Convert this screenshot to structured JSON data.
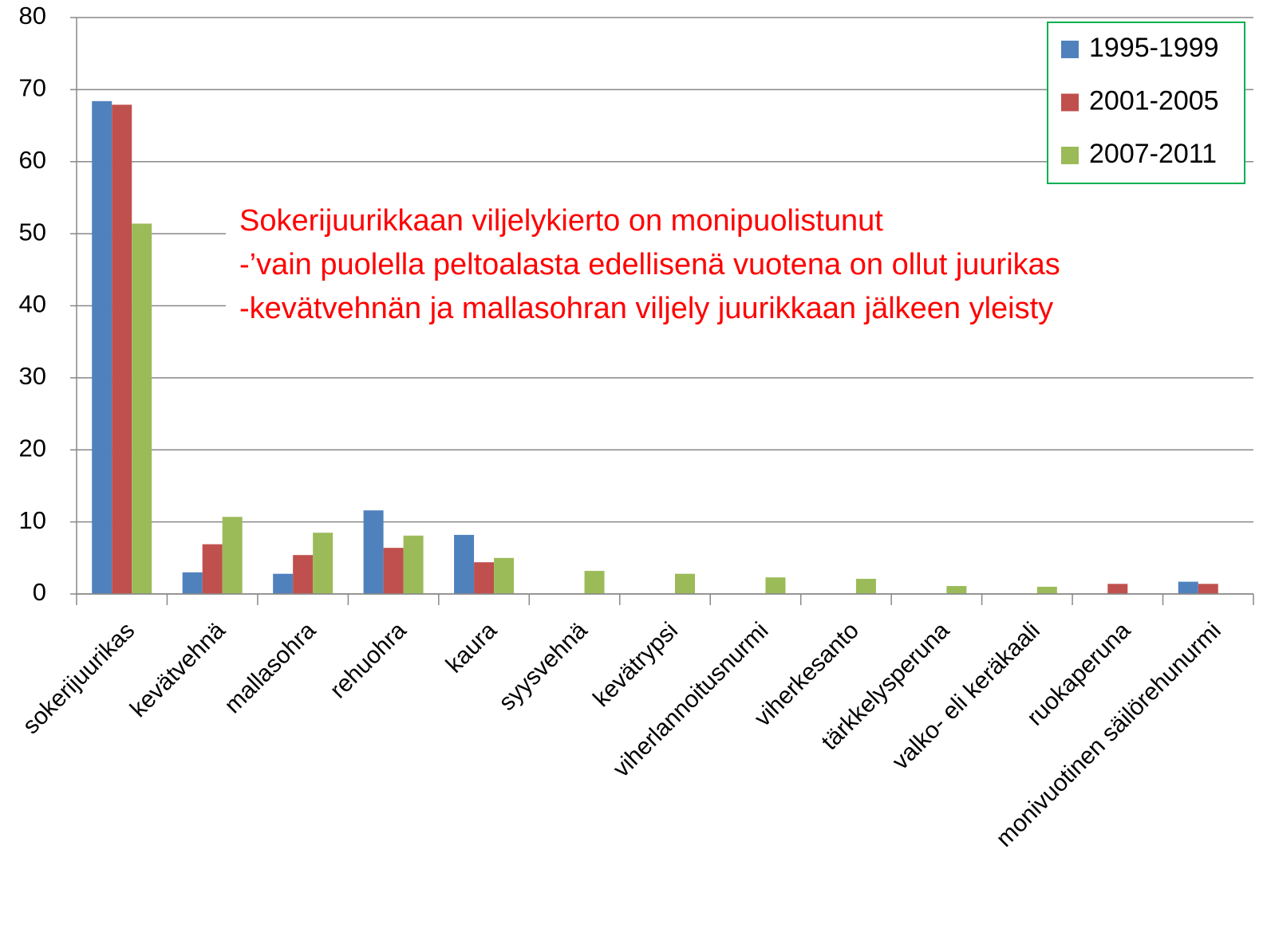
{
  "chart_data": {
    "type": "bar",
    "categories": [
      "sokerijuurikas",
      "kevätvehnä",
      "mallasohra",
      "rehuohra",
      "kaura",
      "syysvehnä",
      "kevätrypsi",
      "viherlannoitusnurmi",
      "viherkesanto",
      "tärkkelysperuna",
      "valko- eli keräkaali",
      "ruokaperuna",
      "monivuotinen säilörehunurmi"
    ],
    "series": [
      {
        "name": "1995-1999",
        "color": "#4f81bd",
        "values": [
          68.4,
          3.0,
          2.8,
          11.6,
          8.2,
          0,
          0,
          0,
          0,
          0,
          0,
          0,
          1.7
        ]
      },
      {
        "name": "2001-2005",
        "color": "#c0504d",
        "values": [
          67.9,
          6.9,
          5.4,
          6.4,
          4.4,
          0,
          0,
          0,
          0,
          0,
          0,
          1.4,
          1.4
        ]
      },
      {
        "name": "2007-2011",
        "color": "#9bbb59",
        "values": [
          51.4,
          10.7,
          8.5,
          8.1,
          5.0,
          3.2,
          2.8,
          2.3,
          2.1,
          1.1,
          1.0,
          0,
          0
        ]
      }
    ],
    "ylim": [
      0,
      80
    ],
    "yticks": [
      0,
      10,
      20,
      30,
      40,
      50,
      60,
      70,
      80
    ],
    "grid": true,
    "legend": "top-right",
    "annotations": [
      "Sokerijuurikkaan viljelykierto on monipuolistunut",
      "-’vain puolella peltoalasta edellisenä vuotena on ollut juurikas",
      "-kevätvehnän ja mallasohran viljely juurikkaan jälkeen yleisty"
    ]
  }
}
